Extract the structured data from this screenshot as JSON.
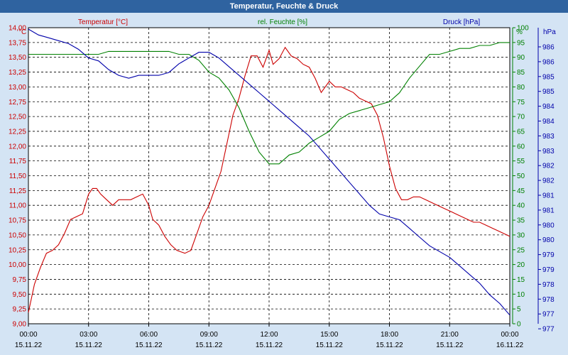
{
  "window": {
    "title": "Temperatur, Feuchte & Druck"
  },
  "colors": {
    "temperature": "#cc0000",
    "humidity": "#008000",
    "pressure": "#0000aa",
    "plot_bg": "#ffffff",
    "grid": "#000000"
  },
  "chart_data": {
    "type": "line",
    "title": "Temperatur, Feuchte & Druck",
    "grid": true,
    "x_ticks": [
      {
        "time": "00:00",
        "date": "15.11.22"
      },
      {
        "time": "03:00",
        "date": "15.11.22"
      },
      {
        "time": "06:00",
        "date": "15.11.22"
      },
      {
        "time": "09:00",
        "date": "15.11.22"
      },
      {
        "time": "12:00",
        "date": "15.11.22"
      },
      {
        "time": "15:00",
        "date": "15.11.22"
      },
      {
        "time": "18:00",
        "date": "15.11.22"
      },
      {
        "time": "21:00",
        "date": "15.11.22"
      },
      {
        "time": "00:00",
        "date": "16.11.22"
      }
    ],
    "x_range_hours": [
      0,
      24
    ],
    "axes": {
      "left": {
        "label": "Temperatur [°C]",
        "unit": "°C",
        "ylim": [
          9.0,
          14.25
        ],
        "ticks": [
          "14,00",
          "13,75",
          "13,50",
          "13,25",
          "13,00",
          "12,75",
          "12,50",
          "12,25",
          "12,00",
          "11,75",
          "11,50",
          "11,25",
          "11,00",
          "10,75",
          "10,50",
          "10,25",
          "10,00",
          "9,75",
          "9,50",
          "9,25",
          "9,00"
        ]
      },
      "middle": {
        "label": "rel. Feuchte [%]",
        "unit": "%",
        "ylim": [
          0,
          100
        ],
        "ticks": [
          "100",
          "95",
          "90",
          "85",
          "80",
          "75",
          "70",
          "65",
          "60",
          "55",
          "50",
          "45",
          "40",
          "35",
          "30",
          "25",
          "20",
          "15",
          "10",
          "5",
          "0"
        ]
      },
      "right": {
        "label": "Druck [hPa]",
        "unit": "hPa",
        "ylim": [
          976.5,
          986.75
        ],
        "ticks": [
          "986",
          "986",
          "985",
          "985",
          "984",
          "984",
          "983",
          "983",
          "982",
          "982",
          "981",
          "981",
          "980",
          "980",
          "979",
          "979",
          "978",
          "978",
          "977",
          "977"
        ]
      }
    },
    "series": [
      {
        "name": "Temperatur [°C]",
        "axis": "left",
        "x_hours": [
          0,
          0.3,
          0.6,
          0.9,
          1.2,
          1.5,
          1.8,
          2.1,
          2.4,
          2.7,
          3.0,
          3.2,
          3.4,
          3.6,
          3.9,
          4.2,
          4.5,
          4.8,
          5.1,
          5.4,
          5.7,
          6.0,
          6.2,
          6.5,
          6.8,
          7.1,
          7.4,
          7.8,
          8.1,
          8.4,
          8.7,
          9.0,
          9.3,
          9.6,
          9.9,
          10.2,
          10.5,
          10.8,
          11.1,
          11.4,
          11.7,
          12.0,
          12.2,
          12.5,
          12.8,
          13.1,
          13.4,
          13.7,
          14.0,
          14.3,
          14.6,
          15.0,
          15.3,
          15.6,
          15.9,
          16.2,
          16.5,
          16.8,
          17.1,
          17.4,
          17.7,
          18.0,
          18.3,
          18.6,
          18.9,
          19.2,
          19.5,
          19.8,
          20.1,
          20.4,
          20.7,
          21.0,
          21.3,
          21.6,
          21.9,
          22.2,
          22.5,
          22.8,
          23.1,
          23.4,
          23.7,
          24.0
        ],
        "values": [
          9.2,
          9.7,
          10.0,
          10.25,
          10.3,
          10.4,
          10.6,
          10.85,
          10.9,
          10.95,
          11.3,
          11.4,
          11.4,
          11.3,
          11.2,
          11.1,
          11.2,
          11.2,
          11.2,
          11.25,
          11.3,
          11.1,
          10.85,
          10.75,
          10.55,
          10.4,
          10.3,
          10.25,
          10.3,
          10.6,
          10.9,
          11.1,
          11.4,
          11.7,
          12.2,
          12.7,
          13.0,
          13.4,
          13.75,
          13.75,
          13.55,
          13.85,
          13.6,
          13.7,
          13.9,
          13.75,
          13.7,
          13.6,
          13.55,
          13.35,
          13.1,
          13.3,
          13.2,
          13.2,
          13.15,
          13.1,
          13.0,
          12.95,
          12.9,
          12.7,
          12.3,
          11.8,
          11.4,
          11.2,
          11.2,
          11.25,
          11.25,
          11.2,
          11.15,
          11.1,
          11.05,
          11.0,
          10.95,
          10.9,
          10.85,
          10.8,
          10.8,
          10.75,
          10.7,
          10.65,
          10.6,
          10.55
        ]
      },
      {
        "name": "rel. Feuchte [%]",
        "axis": "middle",
        "x_hours": [
          0,
          0.5,
          1.0,
          1.5,
          2.0,
          2.5,
          3.0,
          3.5,
          4.0,
          4.5,
          5.0,
          5.5,
          6.0,
          6.5,
          7.0,
          7.5,
          8.0,
          8.5,
          9.0,
          9.5,
          10.0,
          10.5,
          11.0,
          11.5,
          12.0,
          12.5,
          13.0,
          13.5,
          14.0,
          14.5,
          15.0,
          15.5,
          16.0,
          16.5,
          17.0,
          17.5,
          18.0,
          18.5,
          19.0,
          19.5,
          20.0,
          20.5,
          21.0,
          21.5,
          22.0,
          22.5,
          23.0,
          23.5,
          24.0
        ],
        "values": [
          91,
          91,
          91,
          91,
          91,
          91,
          91,
          91,
          92,
          92,
          92,
          92,
          92,
          92,
          92,
          91,
          91,
          89,
          85,
          83,
          79,
          73,
          65,
          58,
          54,
          54,
          57,
          58,
          61,
          63,
          65,
          69,
          71,
          72,
          73,
          74,
          75,
          78,
          83,
          87,
          91,
          91,
          92,
          93,
          93,
          94,
          94,
          95,
          95
        ]
      },
      {
        "name": "Druck [hPa]",
        "axis": "right",
        "x_hours": [
          0,
          0.5,
          1.0,
          1.5,
          2.0,
          2.5,
          3.0,
          3.5,
          4.0,
          4.5,
          5.0,
          5.5,
          6.0,
          6.5,
          7.0,
          7.5,
          8.0,
          8.5,
          9.0,
          9.5,
          10.0,
          10.5,
          11.0,
          11.5,
          12.0,
          12.5,
          13.0,
          13.5,
          14.0,
          14.5,
          15.0,
          15.5,
          16.0,
          16.5,
          17.0,
          17.5,
          18.0,
          18.5,
          19.0,
          19.5,
          20.0,
          20.5,
          21.0,
          21.5,
          22.0,
          22.5,
          23.0,
          23.5,
          24.0
        ],
        "values": [
          986.7,
          986.5,
          986.4,
          986.3,
          986.2,
          986.0,
          985.7,
          985.6,
          985.3,
          985.1,
          985.0,
          985.1,
          985.1,
          985.1,
          985.2,
          985.5,
          985.7,
          985.9,
          985.9,
          985.7,
          985.4,
          985.1,
          984.8,
          984.5,
          984.2,
          983.9,
          983.6,
          983.3,
          983.0,
          982.6,
          982.2,
          981.8,
          981.4,
          981.0,
          980.6,
          980.3,
          980.2,
          980.1,
          979.8,
          979.5,
          979.2,
          979.0,
          978.8,
          978.5,
          978.2,
          977.9,
          977.5,
          977.2,
          976.8
        ]
      }
    ]
  }
}
